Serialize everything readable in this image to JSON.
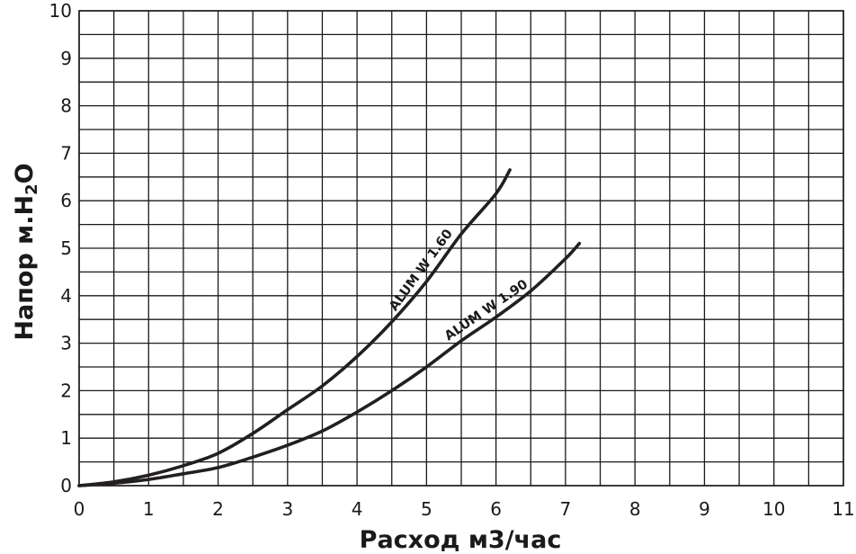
{
  "chart_data": {
    "type": "line",
    "xlabel": "Расход м3/час",
    "ylabel": "Напор м.H",
    "ylabel_sub": "2",
    "ylabel_tail": "O",
    "xlim": [
      0,
      11
    ],
    "ylim": [
      0,
      10
    ],
    "x_ticks": [
      "0",
      "1",
      "2",
      "3",
      "4",
      "5",
      "6",
      "7",
      "8",
      "9",
      "10",
      "11"
    ],
    "y_ticks": [
      "0",
      "1",
      "2",
      "3",
      "4",
      "5",
      "6",
      "7",
      "8",
      "9",
      "10"
    ],
    "grid": true,
    "series": [
      {
        "name": "ALUM W 1.60",
        "color": "#231f20",
        "x": [
          0,
          0.5,
          1,
          1.5,
          2,
          2.5,
          3,
          3.5,
          4,
          4.5,
          5,
          5.5,
          6,
          6.2
        ],
        "y": [
          0,
          0.08,
          0.22,
          0.42,
          0.68,
          1.1,
          1.6,
          2.1,
          2.72,
          3.45,
          4.3,
          5.3,
          6.15,
          6.65
        ]
      },
      {
        "name": "ALUM W 1.90",
        "color": "#231f20",
        "x": [
          0,
          0.5,
          1,
          1.5,
          2,
          2.5,
          3,
          3.5,
          4,
          4.5,
          5,
          5.5,
          6,
          6.5,
          7,
          7.2
        ],
        "y": [
          0,
          0.05,
          0.13,
          0.25,
          0.38,
          0.6,
          0.85,
          1.15,
          1.55,
          2.0,
          2.5,
          3.05,
          3.55,
          4.1,
          4.78,
          5.1
        ]
      }
    ],
    "annotations": [
      "ALUM W 1.60",
      "ALUM W 1.90"
    ]
  }
}
